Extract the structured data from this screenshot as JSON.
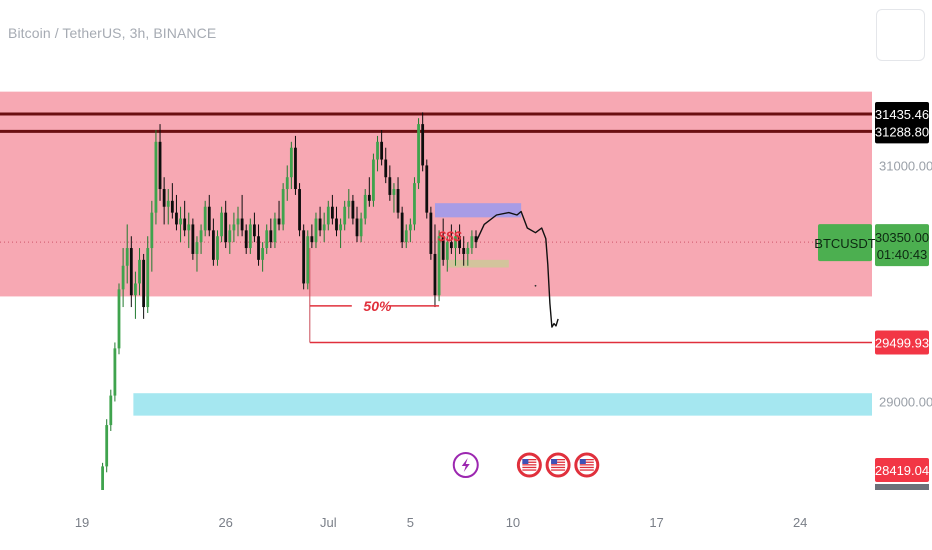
{
  "header": {
    "title": "Bitcoin / TetherUS, 3h, BINANCE"
  },
  "chart_data": {
    "type": "candlestick",
    "symbol": "BTCUSDT",
    "exchange": "BINANCE",
    "timeframe": "3h",
    "ylim": [
      28250,
      31800
    ],
    "price_axis_labels": [
      "31000.00",
      "29000.00"
    ],
    "time_axis_labels": [
      "19",
      "26",
      "Jul",
      "5",
      "10",
      "17",
      "24"
    ],
    "time_axis_days": [
      19,
      26,
      31,
      35,
      40,
      47,
      54
    ],
    "xlim_days": [
      15,
      57.5
    ],
    "last_price": {
      "symbol_label": "BTCUSDT",
      "value": 30350.0,
      "label": "30350.00",
      "countdown": "01:40:43",
      "color": "#4caf50"
    },
    "price_tags": [
      {
        "label": "31435.46",
        "value": 31435.46,
        "bg": "#000000",
        "fg": "#ffffff"
      },
      {
        "label": "31288.80",
        "value": 31288.8,
        "bg": "#000000",
        "fg": "#ffffff"
      },
      {
        "label": "29499.93",
        "value": 29499.93,
        "bg": "#f23645",
        "fg": "#ffffff"
      },
      {
        "label": "28419.04",
        "value": 28419.04,
        "bg": "#f23645",
        "fg": "#ffffff"
      }
    ],
    "zones": [
      {
        "name": "supply-zone",
        "y_from": 29890,
        "y_to": 31625,
        "x_from": 15,
        "x_to": 57.5,
        "color": "#f7a8b3"
      },
      {
        "name": "demand-zone",
        "y_from": 28880,
        "y_to": 29070,
        "x_from": 21.5,
        "x_to": 57.5,
        "color": "#a5e7f0"
      },
      {
        "name": "purple-box",
        "y_from": 30560,
        "y_to": 30680,
        "x_from": 36.2,
        "x_to": 40.4,
        "color": "#a89ce6"
      },
      {
        "name": "tan-box",
        "y_from": 30135,
        "y_to": 30200,
        "x_from": 36.8,
        "x_to": 39.8,
        "color": "#d3c49c"
      }
    ],
    "resistance_lines": [
      {
        "value": 31435.46,
        "color": "#6b0f12"
      },
      {
        "value": 31288.8,
        "color": "#6b0f12"
      }
    ],
    "target_line": {
      "value": 29499.93,
      "x_from": 30.1,
      "color": "#e0303c"
    },
    "fifty_percent": {
      "label": "50%",
      "value": 29810,
      "x_from": 30.1,
      "x_to": 36.4,
      "color": "#e0303c"
    },
    "liquidity_label": "$$$",
    "candles_ohlc_approx": [
      [
        20.0,
        28250,
        28480,
        28250,
        28450
      ],
      [
        20.2,
        28450,
        28850,
        28400,
        28800
      ],
      [
        20.4,
        28800,
        29100,
        28750,
        29050
      ],
      [
        20.6,
        29050,
        29500,
        29000,
        29450
      ],
      [
        20.8,
        29450,
        30000,
        29400,
        29950
      ],
      [
        21.0,
        29950,
        30300,
        29800,
        30150
      ],
      [
        21.2,
        30150,
        30500,
        30000,
        30300
      ],
      [
        21.4,
        30300,
        30400,
        29800,
        29900
      ],
      [
        21.6,
        29900,
        30100,
        29700,
        30000
      ],
      [
        21.8,
        30000,
        30300,
        29900,
        30200
      ],
      [
        22.0,
        30200,
        30250,
        29700,
        29800
      ],
      [
        22.2,
        29800,
        30400,
        29750,
        30300
      ],
      [
        22.4,
        30300,
        30700,
        30100,
        30600
      ],
      [
        22.6,
        30600,
        31300,
        30500,
        31200
      ],
      [
        22.8,
        31200,
        31350,
        30700,
        30800
      ],
      [
        23.0,
        30800,
        30900,
        30500,
        30650
      ],
      [
        23.2,
        30650,
        30800,
        30500,
        30700
      ],
      [
        23.4,
        30700,
        30850,
        30550,
        30600
      ],
      [
        23.6,
        30600,
        30750,
        30450,
        30500
      ],
      [
        23.8,
        30500,
        30650,
        30350,
        30550
      ],
      [
        24.0,
        30550,
        30700,
        30400,
        30450
      ],
      [
        24.2,
        30450,
        30600,
        30300,
        30500
      ],
      [
        24.4,
        30500,
        30550,
        30200,
        30250
      ],
      [
        24.6,
        30250,
        30400,
        30100,
        30350
      ],
      [
        24.8,
        30350,
        30500,
        30250,
        30450
      ],
      [
        25.0,
        30450,
        30700,
        30400,
        30650
      ],
      [
        25.2,
        30650,
        30750,
        30400,
        30450
      ],
      [
        25.4,
        30450,
        30550,
        30150,
        30200
      ],
      [
        25.6,
        30200,
        30450,
        30150,
        30400
      ],
      [
        25.8,
        30400,
        30650,
        30350,
        30600
      ],
      [
        26.0,
        30600,
        30700,
        30300,
        30350
      ],
      [
        26.2,
        30350,
        30500,
        30250,
        30450
      ],
      [
        26.4,
        30450,
        30600,
        30350,
        30500
      ],
      [
        26.6,
        30500,
        30650,
        30400,
        30550
      ],
      [
        26.8,
        30550,
        30750,
        30400,
        30450
      ],
      [
        27.0,
        30450,
        30500,
        30250,
        30300
      ],
      [
        27.2,
        30300,
        30550,
        30250,
        30500
      ],
      [
        27.4,
        30500,
        30600,
        30350,
        30400
      ],
      [
        27.6,
        30400,
        30500,
        30150,
        30200
      ],
      [
        27.8,
        30200,
        30350,
        30100,
        30300
      ],
      [
        28.0,
        30300,
        30500,
        30250,
        30450
      ],
      [
        28.2,
        30450,
        30550,
        30300,
        30350
      ],
      [
        28.4,
        30350,
        30600,
        30300,
        30550
      ],
      [
        28.6,
        30550,
        30700,
        30450,
        30500
      ],
      [
        28.8,
        30500,
        30850,
        30450,
        30800
      ],
      [
        29.0,
        30800,
        31000,
        30700,
        30900
      ],
      [
        29.2,
        30900,
        31200,
        30800,
        31150
      ],
      [
        29.4,
        31150,
        31250,
        30750,
        30800
      ],
      [
        29.6,
        30800,
        30850,
        30400,
        30450
      ],
      [
        29.8,
        30450,
        30500,
        29950,
        30000
      ],
      [
        30.0,
        30000,
        30450,
        29950,
        30400
      ],
      [
        30.2,
        30400,
        30500,
        30300,
        30350
      ],
      [
        30.4,
        30350,
        30600,
        30300,
        30550
      ],
      [
        30.6,
        30550,
        30650,
        30400,
        30450
      ],
      [
        30.8,
        30450,
        30600,
        30350,
        30500
      ],
      [
        31.0,
        30500,
        30700,
        30450,
        30650
      ],
      [
        31.2,
        30650,
        30750,
        30500,
        30550
      ],
      [
        31.4,
        30550,
        30650,
        30400,
        30450
      ],
      [
        31.6,
        30450,
        30550,
        30300,
        30500
      ],
      [
        31.8,
        30500,
        30700,
        30450,
        30650
      ],
      [
        32.0,
        30650,
        30800,
        30550,
        30700
      ],
      [
        32.2,
        30700,
        30750,
        30500,
        30550
      ],
      [
        32.4,
        30550,
        30650,
        30350,
        30400
      ],
      [
        32.6,
        30400,
        30600,
        30350,
        30550
      ],
      [
        32.8,
        30550,
        30800,
        30500,
        30750
      ],
      [
        33.0,
        30750,
        30900,
        30650,
        30700
      ],
      [
        33.2,
        30700,
        31100,
        30650,
        31050
      ],
      [
        33.4,
        31050,
        31250,
        30950,
        31200
      ],
      [
        33.6,
        31200,
        31300,
        31000,
        31050
      ],
      [
        33.8,
        31050,
        31150,
        30850,
        30900
      ],
      [
        34.0,
        30900,
        31000,
        30700,
        30750
      ],
      [
        34.2,
        30750,
        30850,
        30600,
        30800
      ],
      [
        34.4,
        30800,
        30900,
        30550,
        30600
      ],
      [
        34.6,
        30600,
        30650,
        30300,
        30350
      ],
      [
        34.8,
        30350,
        30500,
        30300,
        30450
      ],
      [
        35.0,
        30450,
        30550,
        30350,
        30500
      ],
      [
        35.2,
        30500,
        30900,
        30450,
        30850
      ],
      [
        35.4,
        30850,
        31400,
        30800,
        31350
      ],
      [
        35.6,
        31350,
        31450,
        30950,
        31000
      ],
      [
        35.8,
        31000,
        31050,
        30550,
        30600
      ],
      [
        36.0,
        30600,
        30650,
        30200,
        30250
      ],
      [
        36.2,
        30250,
        30500,
        29800,
        29900
      ],
      [
        36.4,
        29900,
        30450,
        29850,
        30400
      ],
      [
        36.6,
        30400,
        30550,
        30150,
        30200
      ],
      [
        36.8,
        30200,
        30400,
        30100,
        30350
      ],
      [
        37.0,
        30350,
        30500,
        30250,
        30300
      ],
      [
        37.2,
        30300,
        30450,
        30150,
        30400
      ],
      [
        37.4,
        30400,
        30500,
        30250,
        30300
      ],
      [
        37.6,
        30300,
        30400,
        30150,
        30250
      ],
      [
        37.8,
        30250,
        30350,
        30150,
        30300
      ],
      [
        38.0,
        30300,
        30450,
        30250,
        30400
      ],
      [
        38.2,
        30400,
        30450,
        30300,
        30350
      ]
    ],
    "projection_path": [
      [
        38.2,
        30350
      ],
      [
        38.6,
        30500
      ],
      [
        39.2,
        30580
      ],
      [
        39.8,
        30600
      ],
      [
        40.2,
        30580
      ],
      [
        40.4,
        30610
      ],
      [
        40.7,
        30470
      ],
      [
        41.1,
        30430
      ],
      [
        41.4,
        30470
      ],
      [
        41.6,
        30380
      ],
      [
        41.7,
        30160
      ],
      [
        41.8,
        29830
      ],
      [
        41.9,
        29630
      ],
      [
        42.0,
        29660
      ],
      [
        42.1,
        29640
      ],
      [
        42.2,
        29700
      ]
    ],
    "event_icons": [
      {
        "kind": "lightning",
        "day": 37.7
      },
      {
        "kind": "us-flag",
        "day": 40.8
      },
      {
        "kind": "us-flag",
        "day": 42.2
      },
      {
        "kind": "us-flag",
        "day": 43.6
      }
    ]
  }
}
